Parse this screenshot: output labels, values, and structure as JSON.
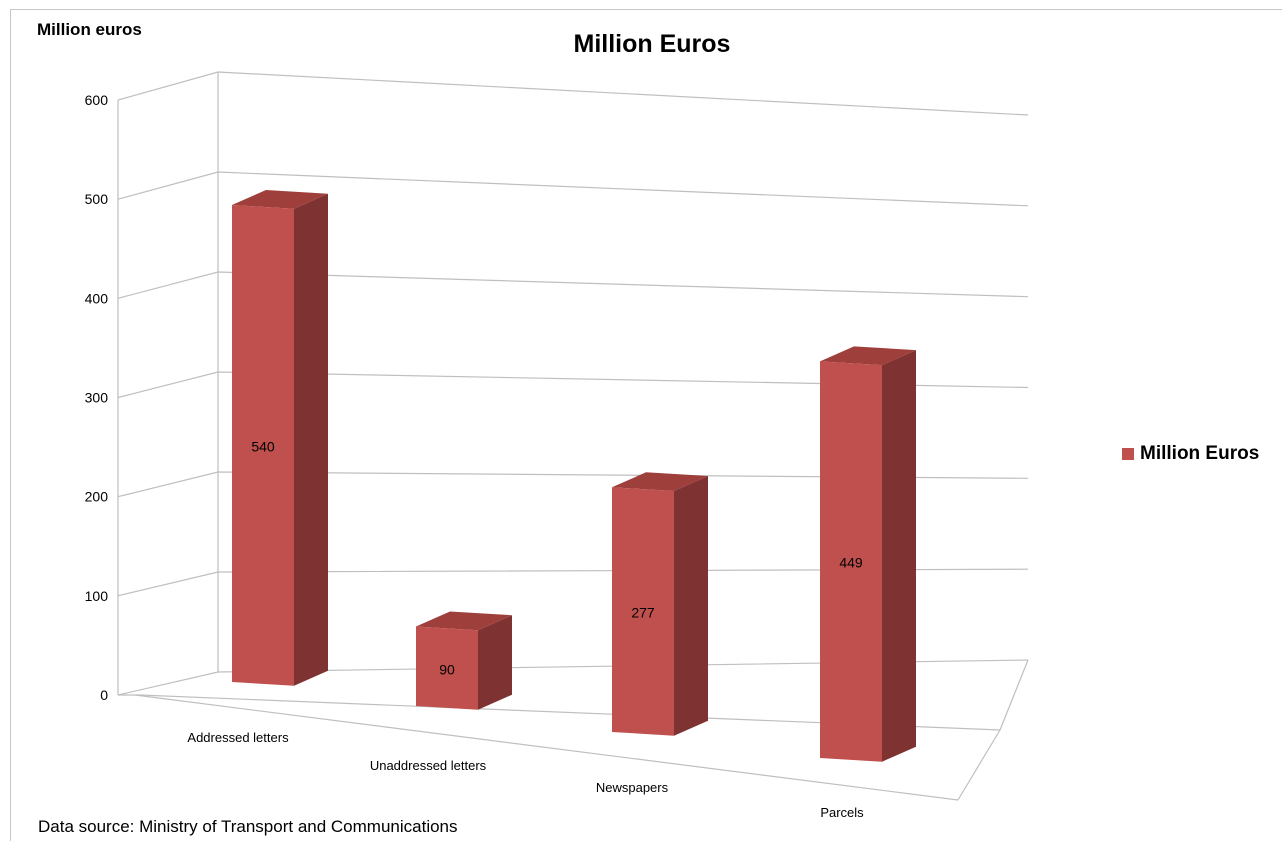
{
  "chart_data": {
    "type": "bar",
    "title": "Million Euros",
    "ylabel": "Million euros",
    "categories": [
      "Addressed letters",
      "Unaddressed letters",
      "Newspapers",
      "Parcels"
    ],
    "series": [
      {
        "name": "Million Euros",
        "values": [
          540,
          90,
          277,
          449
        ],
        "color": "#c0504d"
      }
    ],
    "yticks": [
      0,
      100,
      200,
      300,
      400,
      500,
      600
    ],
    "ylim": [
      0,
      600
    ],
    "grid": true,
    "legend": "right",
    "projection": "3d"
  },
  "footer": {
    "source": "Data source: Ministry of Transport and Communications"
  },
  "colors": {
    "front": "#c0504d",
    "side": "#7e3231",
    "top": "#9e3f3c",
    "grid": "#bfbfbf"
  }
}
